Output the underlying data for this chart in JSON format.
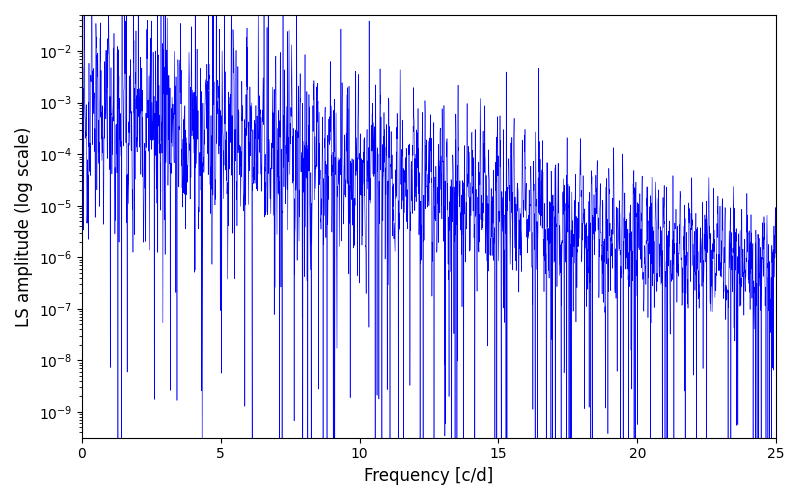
{
  "title": "",
  "xlabel": "Frequency [c/d]",
  "ylabel": "LS amplitude (log scale)",
  "line_color": "#0000ff",
  "xlim": [
    0,
    25
  ],
  "ylim_log_min": -9.5,
  "ylim_log_max": -1.3,
  "freq_max": 25.0,
  "num_points": 3000,
  "seed": 12345,
  "figsize": [
    8.0,
    5.0
  ],
  "dpi": 100
}
